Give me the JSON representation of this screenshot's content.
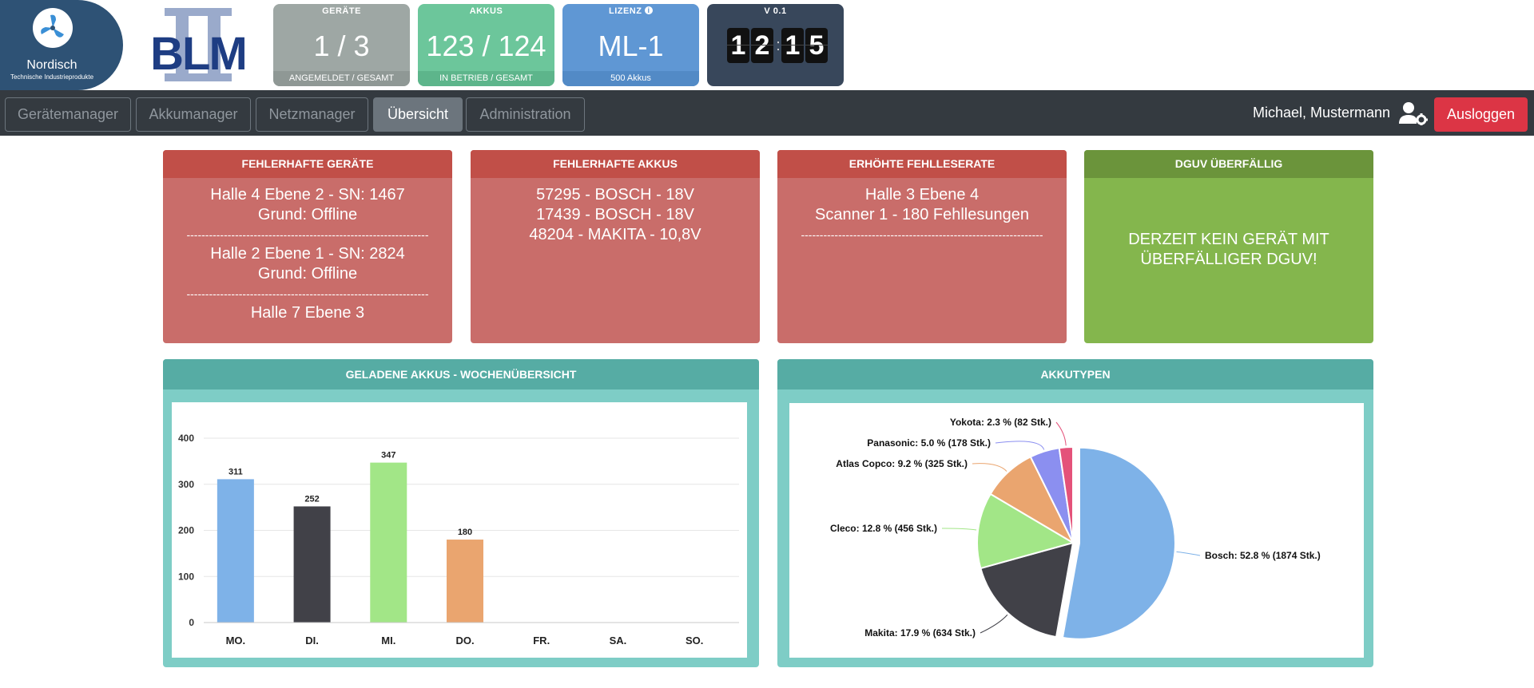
{
  "logo": {
    "name": "Nordisch",
    "subtitle": "Technische Industrieprodukte",
    "brand": "BLM"
  },
  "stats": {
    "geraete": {
      "label": "GERÄTE",
      "value": "1 / 3",
      "footer": "ANGEMELDET / GESAMT"
    },
    "akkus": {
      "label": "AKKUS",
      "value": "123 / 124",
      "footer": "IN BETRIEB / GESAMT"
    },
    "lizenz": {
      "label": "LIZENZ",
      "value": "ML-1",
      "footer": "500 Akkus",
      "icon": "info-icon"
    },
    "version": {
      "label": "V 0.1",
      "clock": [
        "1",
        "2",
        "1",
        "5"
      ]
    }
  },
  "nav": {
    "items": [
      "Gerätemanager",
      "Akkumanager",
      "Netzmanager",
      "Übersicht",
      "Administration"
    ],
    "active": "Übersicht",
    "user": "Michael, Mustermann",
    "logout": "Ausloggen"
  },
  "cards": {
    "fehlerhafte_geraete": {
      "title": "FEHLERHAFTE GERÄTE",
      "lines": [
        "Halle 4 Ebene 2 - SN: 1467",
        "Grund: Offline",
        "Halle 2 Ebene 1 - SN: 2824",
        "Grund: Offline",
        "Halle 7 Ebene 3"
      ],
      "separator": "-----------------------------------------------------------------"
    },
    "fehlerhafte_akkus": {
      "title": "FEHLERHAFTE AKKUS",
      "lines": [
        "57295 - BOSCH - 18V",
        "17439 - BOSCH - 18V",
        "48204 - MAKITA - 10,8V"
      ]
    },
    "fehllese": {
      "title": "ERHÖHTE FEHLLESERATE",
      "lines": [
        "Halle 3 Ebene 4",
        "Scanner 1 - 180 Fehllesungen"
      ],
      "separator": "-----------------------------------------------------------------"
    },
    "dguv": {
      "title": "DGUV ÜBERFÄLLIG",
      "lines": [
        "DERZEIT KEIN GERÄT MIT",
        "ÜBERFÄLLIGER DGUV!"
      ]
    }
  },
  "charts": {
    "wochen_title": "GELADENE AKKUS - WOCHENÜBERSICHT",
    "typen_title": "AKKUTYPEN"
  },
  "colors": {
    "red": "#c96d6a",
    "green": "#84b64d",
    "teal": "#56aca4",
    "logout": "#dc3545"
  },
  "chart_data": [
    {
      "type": "bar",
      "title": "GELADENE AKKUS - WOCHENÜBERSICHT",
      "categories": [
        "MO.",
        "DI.",
        "MI.",
        "DO.",
        "FR.",
        "SA.",
        "SO."
      ],
      "values": [
        311,
        252,
        347,
        180,
        0,
        0,
        0
      ],
      "data_labels": [
        "311",
        "252",
        "347",
        "180",
        "",
        "",
        ""
      ],
      "colors": [
        "#7eb2e8",
        "#414148",
        "#a2e687",
        "#eaa56f",
        "#f2c461",
        "#8b8ff0",
        "#e4527a"
      ],
      "yticks": [
        0,
        100,
        200,
        300,
        400
      ],
      "ylim": [
        0,
        400
      ],
      "grid": true
    },
    {
      "type": "pie",
      "title": "AKKUTYPEN",
      "slices": [
        {
          "label": "Bosch",
          "percent": 52.8,
          "count": 1874,
          "text": "Bosch: 52.8 % (1874 Stk.)",
          "color": "#7eb2e8"
        },
        {
          "label": "Makita",
          "percent": 17.9,
          "count": 634,
          "text": "Makita: 17.9 % (634 Stk.)",
          "color": "#414148"
        },
        {
          "label": "Cleco",
          "percent": 12.8,
          "count": 456,
          "text": "Cleco: 12.8 % (456 Stk.)",
          "color": "#a2e687"
        },
        {
          "label": "Atlas Copco",
          "percent": 9.2,
          "count": 325,
          "text": "Atlas Copco: 9.2 % (325 Stk.)",
          "color": "#eaa56f"
        },
        {
          "label": "Panasonic",
          "percent": 5.0,
          "count": 178,
          "text": "Panasonic: 5.0 % (178 Stk.)",
          "color": "#8b8ff0"
        },
        {
          "label": "Yokota",
          "percent": 2.3,
          "count": 82,
          "text": "Yokota: 2.3 % (82 Stk.)",
          "color": "#e4527a"
        }
      ]
    }
  ]
}
